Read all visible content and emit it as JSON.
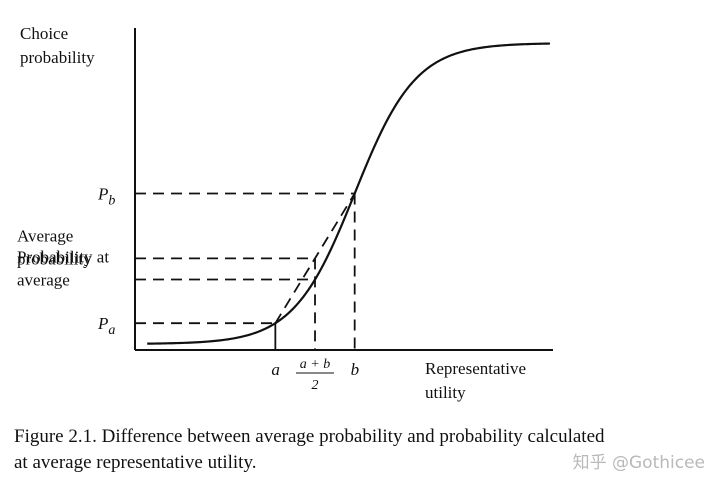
{
  "chart_data": {
    "type": "line",
    "title": "",
    "ylabel_lines": [
      "Choice",
      "probability"
    ],
    "xlabel_lines": [
      "Representative",
      "utility"
    ],
    "curve": {
      "description_free": true,
      "x": [
        -6,
        -5,
        -4,
        -3,
        -2,
        -1,
        0,
        1,
        2,
        3,
        4,
        5,
        6
      ],
      "y": [
        0.0025,
        0.0067,
        0.018,
        0.047,
        0.12,
        0.27,
        0.5,
        0.73,
        0.88,
        0.953,
        0.982,
        0.9933,
        0.9975
      ]
    },
    "x_ticks": [
      {
        "label": "a",
        "x": -2.6
      },
      {
        "label_num": "a + b",
        "label_den": "2",
        "x": -1.3
      },
      {
        "label": "b",
        "x": 0
      }
    ],
    "y_ticks": [
      {
        "label_main": "P",
        "label_sub": "b",
        "y": 0.5
      },
      {
        "label_lines": [
          "Average",
          "probability"
        ],
        "y": 0.335
      },
      {
        "label_lines": [
          "Probability at",
          "average"
        ],
        "y": 0.23
      },
      {
        "label_main": "P",
        "label_sub": "a",
        "y": 0.07
      }
    ],
    "xlim": [
      -7.2,
      6.5
    ],
    "ylim": [
      -0.02,
      1.05
    ],
    "grid": false
  },
  "caption": {
    "line1": "Figure 2.1.  Difference between average probability and probability calculated",
    "line2": "at average representative utility."
  },
  "watermark": "知乎 @Gothicee"
}
